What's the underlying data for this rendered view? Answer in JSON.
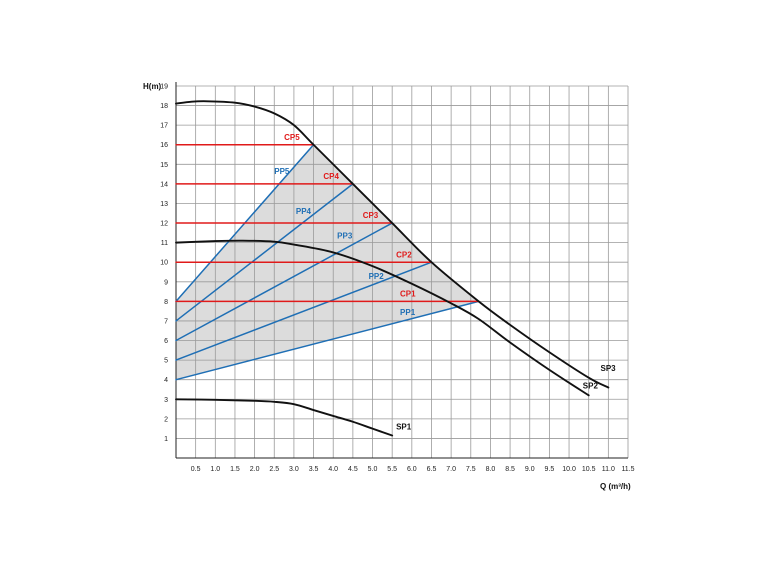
{
  "chart_data": {
    "type": "line",
    "xlabel": "Q (m³/h)",
    "ylabel": "H(m)",
    "xlim": [
      0,
      11.5
    ],
    "ylim": [
      0,
      19
    ],
    "x_ticks": [
      "0.5",
      "1.0",
      "1.5",
      "2.0",
      "2.5",
      "3.0",
      "3.5",
      "4.0",
      "4.5",
      "5.0",
      "5.5",
      "6.0",
      "6.5",
      "7.0",
      "7.5",
      "8.0",
      "8.5",
      "9.0",
      "9.5",
      "10.0",
      "10.5",
      "11.0",
      "11.5"
    ],
    "y_ticks": [
      "1",
      "2",
      "3",
      "4",
      "5",
      "6",
      "7",
      "8",
      "9",
      "10",
      "11",
      "12",
      "13",
      "14",
      "15",
      "16",
      "17",
      "18",
      "19"
    ],
    "grid": true,
    "colors": {
      "black": "#111111",
      "red": "#e01a1a",
      "blue": "#1f6fb5",
      "shade": "#dcdcdc"
    },
    "series": [
      {
        "name": "SP1",
        "color": "black",
        "x": [
          0,
          1.0,
          2.0,
          2.5,
          3.0,
          3.5,
          4.0,
          4.5,
          5.0,
          5.5
        ],
        "y": [
          3.0,
          2.97,
          2.92,
          2.87,
          2.75,
          2.45,
          2.15,
          1.85,
          1.5,
          1.15
        ]
      },
      {
        "name": "SP2",
        "color": "black",
        "x": [
          0,
          1.0,
          1.7,
          2.5,
          3.0,
          4.0,
          5.0,
          6.0,
          7.0,
          7.7,
          8.5,
          9.5,
          10.5
        ],
        "y": [
          11.0,
          11.08,
          11.1,
          11.05,
          10.9,
          10.5,
          9.8,
          8.9,
          7.9,
          7.1,
          5.9,
          4.5,
          3.2
        ]
      },
      {
        "name": "SP3",
        "color": "black",
        "x": [
          0,
          0.4,
          0.8,
          1.5,
          2.0,
          2.5,
          3.0,
          3.5,
          4.5,
          5.5,
          6.5,
          7.7,
          8.5,
          9.5,
          10.5,
          11.0
        ],
        "y": [
          18.1,
          18.2,
          18.22,
          18.15,
          17.95,
          17.6,
          17.0,
          16.0,
          14.0,
          12.0,
          10.0,
          8.0,
          6.8,
          5.4,
          4.1,
          3.6
        ]
      },
      {
        "name": "CP1",
        "color": "red",
        "x": [
          0,
          7.7
        ],
        "y": [
          8,
          8
        ]
      },
      {
        "name": "CP2",
        "color": "red",
        "x": [
          0,
          6.5
        ],
        "y": [
          10,
          10
        ]
      },
      {
        "name": "CP3",
        "color": "red",
        "x": [
          0,
          5.5
        ],
        "y": [
          12,
          12
        ]
      },
      {
        "name": "CP4",
        "color": "red",
        "x": [
          0,
          4.5
        ],
        "y": [
          14,
          14
        ]
      },
      {
        "name": "CP5",
        "color": "red",
        "x": [
          0,
          3.5
        ],
        "y": [
          16,
          16
        ]
      },
      {
        "name": "PP1",
        "color": "blue",
        "x": [
          0,
          7.7
        ],
        "y": [
          4,
          8
        ]
      },
      {
        "name": "PP2",
        "color": "blue",
        "x": [
          0,
          6.5
        ],
        "y": [
          5,
          10
        ]
      },
      {
        "name": "PP3",
        "color": "blue",
        "x": [
          0,
          5.5
        ],
        "y": [
          6,
          12
        ]
      },
      {
        "name": "PP4",
        "color": "blue",
        "x": [
          0,
          4.5
        ],
        "y": [
          7,
          14
        ]
      },
      {
        "name": "PP5",
        "color": "blue",
        "x": [
          0,
          3.5
        ],
        "y": [
          8,
          16
        ]
      }
    ],
    "labels": [
      {
        "text": "CP5",
        "color": "red",
        "x": 2.75,
        "y": 16.25
      },
      {
        "text": "CP4",
        "color": "red",
        "x": 3.75,
        "y": 14.25
      },
      {
        "text": "CP3",
        "color": "red",
        "x": 4.75,
        "y": 12.25
      },
      {
        "text": "CP2",
        "color": "red",
        "x": 5.6,
        "y": 10.25
      },
      {
        "text": "CP1",
        "color": "red",
        "x": 5.7,
        "y": 8.25
      },
      {
        "text": "PP5",
        "color": "blue",
        "x": 2.5,
        "y": 14.5
      },
      {
        "text": "PP4",
        "color": "blue",
        "x": 3.05,
        "y": 12.45
      },
      {
        "text": "PP3",
        "color": "blue",
        "x": 4.1,
        "y": 11.2
      },
      {
        "text": "PP2",
        "color": "blue",
        "x": 4.9,
        "y": 9.15
      },
      {
        "text": "PP1",
        "color": "blue",
        "x": 5.7,
        "y": 7.3
      },
      {
        "text": "SP1",
        "color": "black",
        "x": 5.6,
        "y": 1.45
      },
      {
        "text": "SP2",
        "color": "black",
        "x": 10.35,
        "y": 3.55
      },
      {
        "text": "SP3",
        "color": "black",
        "x": 10.8,
        "y": 4.45
      }
    ]
  }
}
